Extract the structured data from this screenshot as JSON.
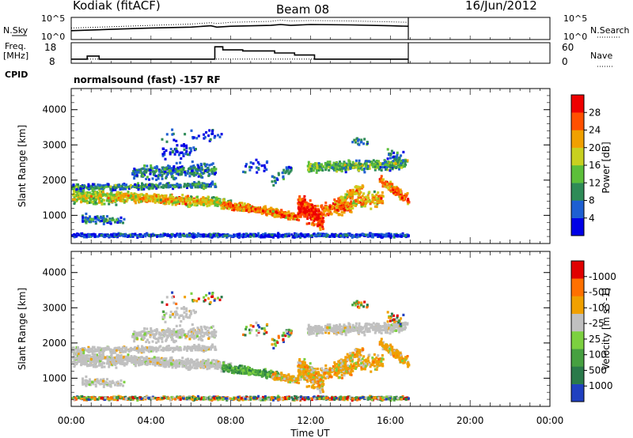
{
  "header": {
    "station": "Kodiak (fitACF)",
    "beam": "Beam 08",
    "date": "16/Jun/2012"
  },
  "colors": {
    "power_scale": [
      "#0000e6",
      "#1e5fd2",
      "#2e8b57",
      "#5cbf3a",
      "#c8d020",
      "#f0a000",
      "#ff5000",
      "#ee0000"
    ],
    "velocity_scale": [
      "#2040c0",
      "#2a7a4a",
      "#46a040",
      "#7cd040",
      "#c0c0c0",
      "#f0a000",
      "#ff7000",
      "#e00000"
    ],
    "ground_scatter": "#c0c0c0"
  },
  "chart_data": [
    {
      "type": "line",
      "name": "nsky-nsearch",
      "left_label": [
        "N.Sky",
        "10^5",
        "10^0"
      ],
      "right_label": [
        "N.Search",
        "10^5",
        "10^0"
      ],
      "x_range_hours": [
        0,
        24
      ],
      "data_end_hour": 16.9,
      "series": [
        {
          "style": "solid",
          "x": [
            0.0,
            2.0,
            4.0,
            6.0,
            7.0,
            7.3,
            8.0,
            10.0,
            10.5,
            11.0,
            12.0,
            14.0,
            16.0,
            16.9
          ],
          "y": [
            2.0,
            2.3,
            2.6,
            2.8,
            3.1,
            2.8,
            3.0,
            3.2,
            3.4,
            3.2,
            3.4,
            3.3,
            3.1,
            3.0
          ]
        },
        {
          "style": "dotted",
          "x": [
            0.0,
            2.0,
            4.0,
            6.0,
            7.0,
            7.3,
            8.0,
            10.0,
            10.5,
            11.0,
            12.0,
            14.0,
            16.0,
            16.9
          ],
          "y": [
            2.6,
            2.9,
            3.2,
            3.5,
            3.8,
            3.6,
            3.9,
            4.1,
            4.4,
            4.2,
            4.3,
            4.2,
            4.0,
            3.9
          ]
        }
      ],
      "ylim": [
        0,
        5
      ]
    },
    {
      "type": "line",
      "name": "freq-nave",
      "left_label": [
        "Freq.",
        "[MHz]",
        "18",
        "8"
      ],
      "right_label": [
        "Nave",
        "60",
        "0"
      ],
      "x_range_hours": [
        0,
        24
      ],
      "data_end_hour": 16.9,
      "series": [
        {
          "style": "solid",
          "x": [
            0.0,
            0.8,
            0.8,
            1.4,
            1.4,
            7.2,
            7.2,
            7.6,
            7.6,
            8.6,
            8.6,
            10.2,
            10.2,
            11.2,
            11.2,
            12.2,
            12.2,
            16.9
          ],
          "y": [
            10,
            10,
            11.5,
            11.5,
            10,
            10,
            16,
            16,
            14.5,
            14.5,
            14,
            14,
            13,
            13,
            12,
            12,
            10,
            10
          ]
        },
        {
          "style": "dotted",
          "x": [
            0.0,
            16.9
          ],
          "y": [
            10,
            10
          ]
        }
      ],
      "ylim": [
        8,
        18
      ]
    },
    {
      "type": "heatmap",
      "name": "power",
      "title": "normalsound (fast) -157 RF",
      "cpid_label": "CPID",
      "ylabel": "Slant Range [km]",
      "yticks": [
        "1000",
        "2000",
        "3000",
        "4000"
      ],
      "ylim_km": [
        200,
        4600
      ],
      "x_range_hours": [
        0,
        24
      ],
      "colorbar": {
        "label": "Power [dB]",
        "ticks": [
          "4",
          "8",
          "12",
          "16",
          "20",
          "24",
          "28"
        ],
        "range": [
          0,
          32
        ]
      }
    },
    {
      "type": "heatmap",
      "name": "velocity",
      "ylabel": "Slant Range [km]",
      "yticks": [
        "1000",
        "2000",
        "3000",
        "4000"
      ],
      "ylim_km": [
        200,
        4600
      ],
      "x_range_hours": [
        0,
        24
      ],
      "xlabel": "Time UT",
      "xticks": [
        "00:00",
        "04:00",
        "08:00",
        "12:00",
        "16:00",
        "20:00",
        "00:00"
      ],
      "colorbar": {
        "label": "Velocity [m s^-1]",
        "ticks": [
          "-1000",
          "-500",
          "-100",
          "-25",
          "25",
          "100",
          "500",
          "1000"
        ]
      }
    }
  ]
}
